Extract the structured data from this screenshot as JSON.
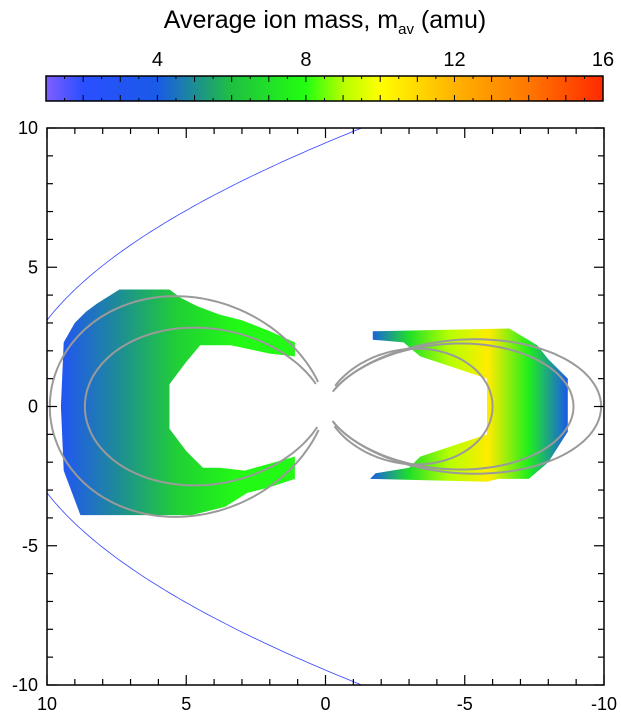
{
  "chart_data": {
    "type": "heatmap",
    "colorbar": {
      "title_main": "Average ion mass, m",
      "title_sub": "av",
      "title_unit": " (amu)",
      "range": [
        1,
        16
      ],
      "ticks": [
        4,
        8,
        12,
        16
      ],
      "tick_labels": [
        "4",
        "8",
        "12",
        "16"
      ],
      "stops": [
        {
          "value": 1,
          "color": "#7f5fff"
        },
        {
          "value": 2,
          "color": "#2a4fff"
        },
        {
          "value": 4,
          "color": "#1a5ae8"
        },
        {
          "value": 6,
          "color": "#1fc040"
        },
        {
          "value": 8,
          "color": "#22ff10"
        },
        {
          "value": 9,
          "color": "#b6ff00"
        },
        {
          "value": 10,
          "color": "#ffff00"
        },
        {
          "value": 12,
          "color": "#ffb300"
        },
        {
          "value": 14,
          "color": "#ff7700"
        },
        {
          "value": 16,
          "color": "#ff2a00"
        }
      ]
    },
    "axes": {
      "xlim": [
        10,
        -10
      ],
      "ylim": [
        -10,
        10
      ],
      "xticks": [
        10,
        5,
        0,
        -5,
        -10
      ],
      "xtick_labels": [
        "10",
        "5",
        "0",
        "-5",
        "-10"
      ],
      "yticks": [
        10,
        5,
        0,
        -5,
        -10
      ],
      "ytick_labels": [
        "10",
        "5",
        "0",
        "-5",
        "-10"
      ],
      "minor_step": 1,
      "grid": false
    },
    "regions": [
      {
        "name_id": "dayside",
        "outer": [
          [
            3.8,
            2.2
          ],
          [
            5.6,
            2.2
          ],
          [
            6.0,
            2.6
          ],
          [
            6.6,
            3.0
          ],
          [
            7.6,
            3.2
          ],
          [
            5.8,
            3.3
          ],
          [
            3.6,
            3.2
          ],
          [
            2.6,
            3.0
          ],
          [
            1.4,
            2.8
          ],
          [
            1.1,
            2.5
          ],
          [
            1.1,
            2.0
          ],
          [
            1.7,
            1.8
          ],
          [
            1.6,
            2.1
          ],
          [
            2.4,
            2.3
          ],
          [
            3.2,
            2.5
          ],
          [
            3.6,
            3.3
          ],
          [
            4.9,
            3.8
          ],
          [
            5.7,
            3.8
          ],
          [
            6.3,
            4.3
          ],
          [
            6.8,
            4.3
          ],
          [
            8.8,
            3.9
          ],
          [
            9.4,
            2.1
          ],
          [
            9.5,
            0
          ],
          [
            9.4,
            -2.1
          ],
          [
            8.8,
            -3.9
          ],
          [
            6.3,
            -3.9
          ],
          [
            4.8,
            -3.5
          ],
          [
            3.2,
            -2.8
          ],
          [
            2.1,
            -2.3
          ],
          [
            1.1,
            -2.0
          ],
          [
            1.1,
            -2.8
          ],
          [
            2.9,
            -2.8
          ],
          [
            3.8,
            -2.2
          ],
          [
            4.4,
            -2.2
          ],
          [
            5.0,
            -1.6
          ],
          [
            5.6,
            -0.8
          ],
          [
            5.6,
            0.8
          ],
          [
            5.0,
            1.6
          ]
        ],
        "gradient_values": [
          3.0,
          5.0,
          6.5,
          7.8,
          7.8
        ]
      },
      {
        "name_id": "nightside",
        "outer": [
          [
            -1.7,
            2.7
          ],
          [
            -2.9,
            2.7
          ],
          [
            -6.2,
            2.8
          ],
          [
            -7.6,
            2.2
          ],
          [
            -7.8,
            1.6
          ],
          [
            -8.1,
            1.5
          ],
          [
            -8.7,
            1.0
          ],
          [
            -8.7,
            -0.9
          ],
          [
            -8.1,
            -2.0
          ],
          [
            -7.3,
            -2.6
          ],
          [
            -5.8,
            -2.6
          ],
          [
            -4.8,
            -2.7
          ],
          [
            -3.6,
            -2.4
          ],
          [
            -3.4,
            -2.0
          ],
          [
            -5.0,
            -1.5
          ],
          [
            -5.3,
            -2.4
          ],
          [
            -4.5,
            -2.7
          ],
          [
            -3.0,
            -2.8
          ],
          [
            -1.6,
            -2.5
          ],
          [
            -1.9,
            -2.2
          ],
          [
            -3.2,
            -1.7
          ],
          [
            -4.0,
            -1.0
          ],
          [
            -4.3,
            0
          ],
          [
            -4.0,
            1.0
          ],
          [
            -3.3,
            2.0
          ],
          [
            -2.0,
            2.4
          ],
          [
            -1.7,
            2.3
          ]
        ],
        "gradient_values": [
          4.0,
          7.0,
          9.0,
          10.5,
          7.5,
          4.0
        ]
      }
    ],
    "boundary_lines": {
      "gray_color": "#9a9a9a",
      "blue_color": "#3344ff"
    }
  }
}
